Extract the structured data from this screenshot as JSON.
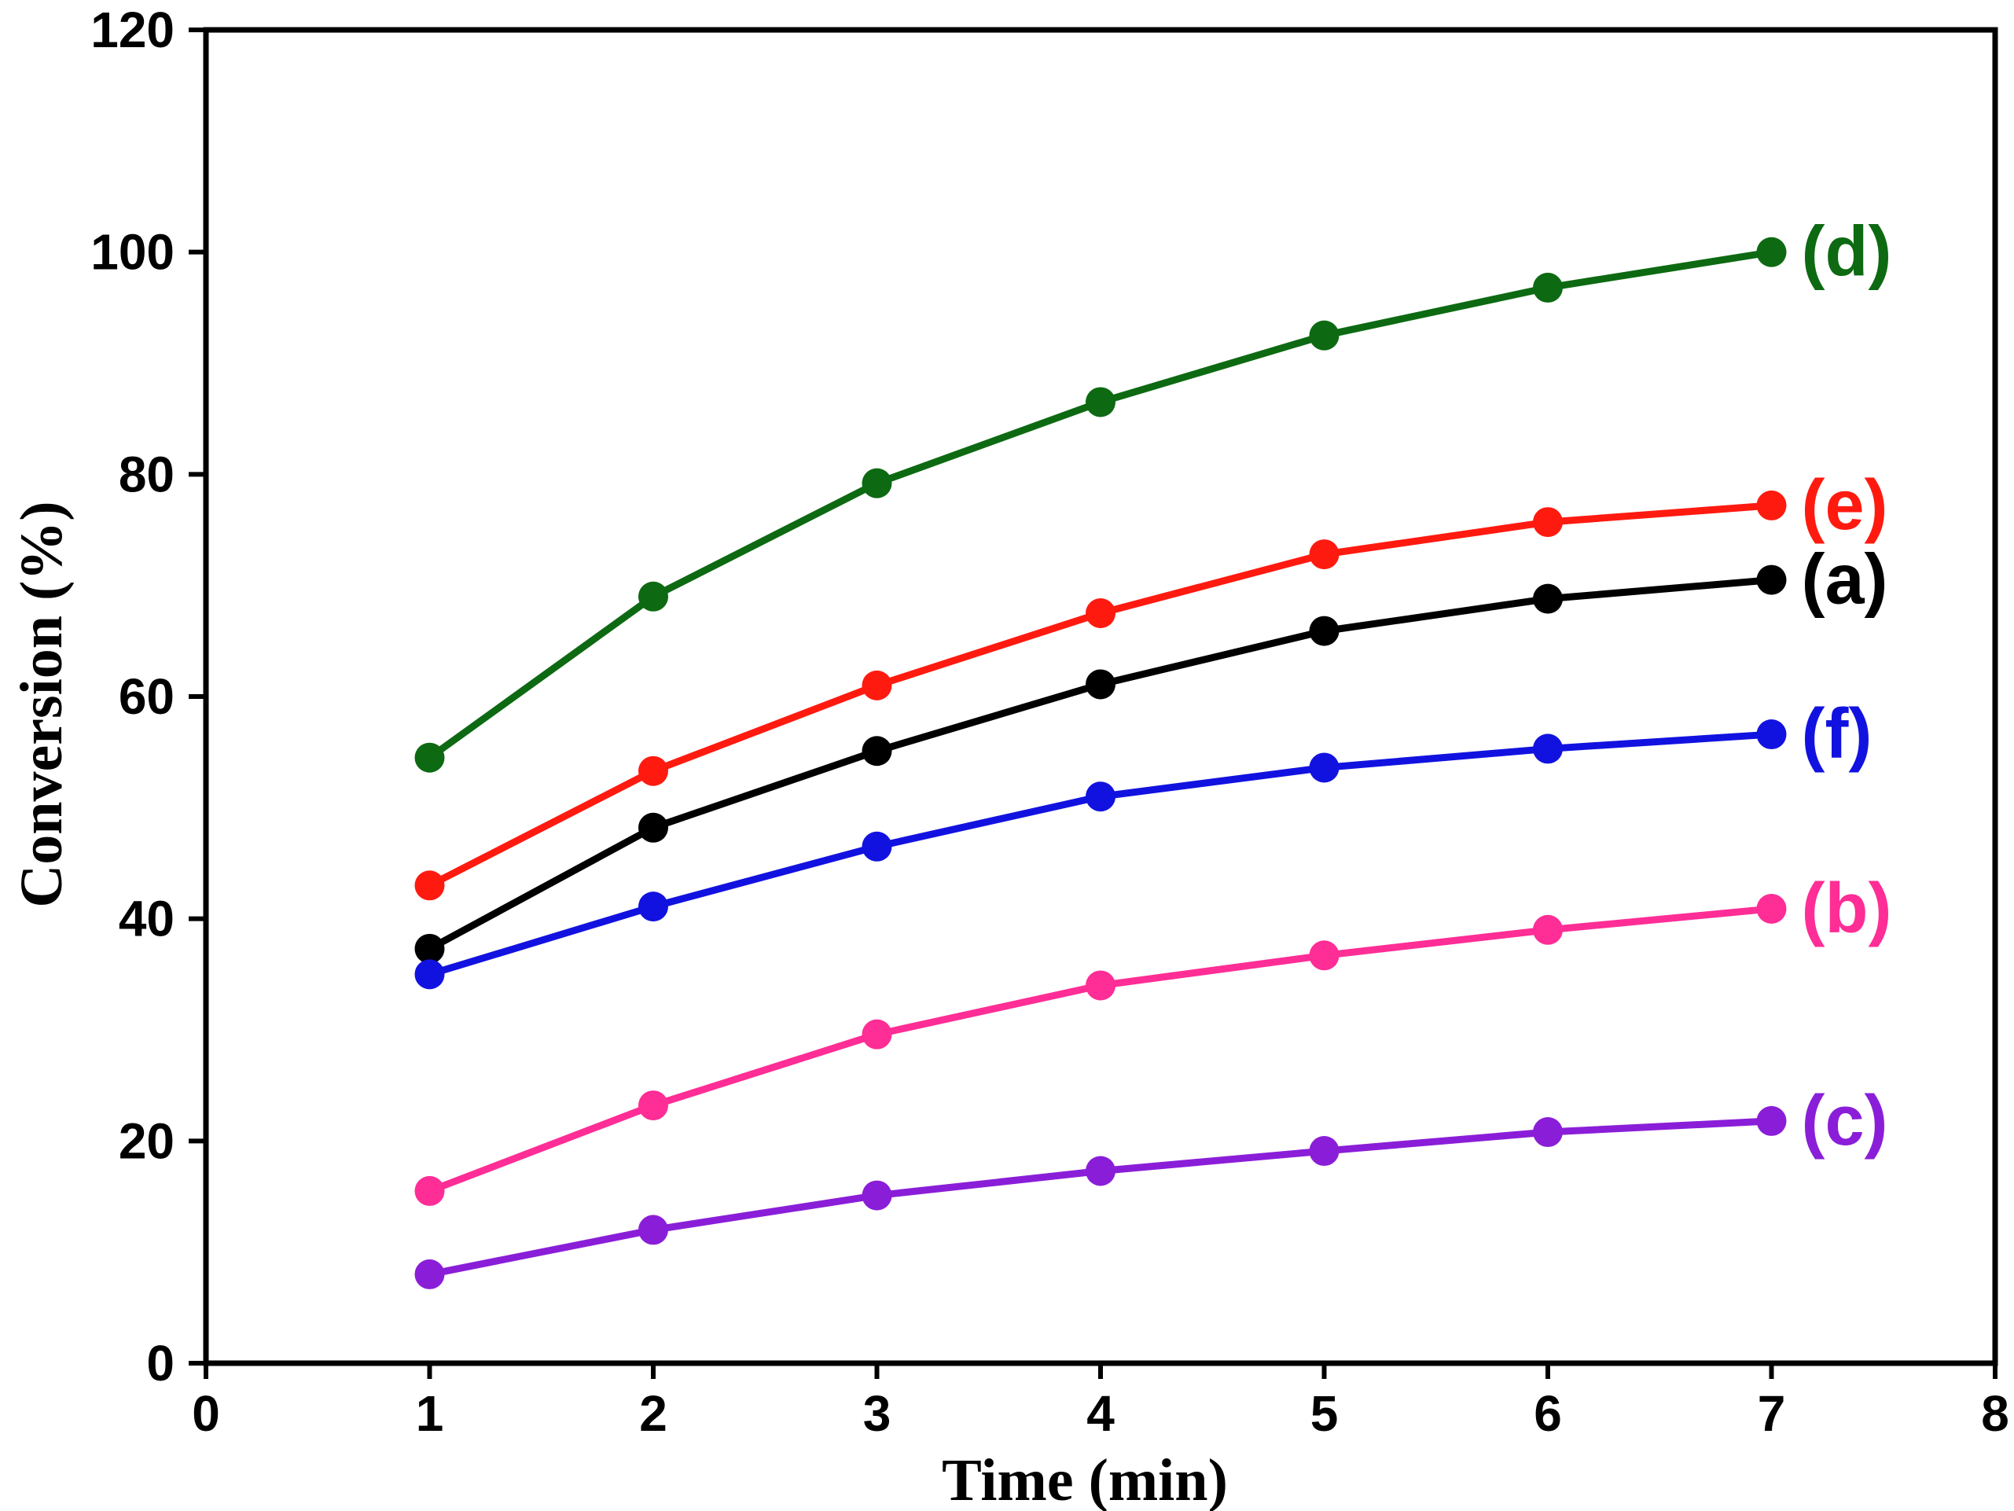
{
  "chart_data": {
    "type": "line",
    "title": "",
    "xlabel": "Time (min)",
    "ylabel": "Conversion (%)",
    "xlim": [
      0,
      8
    ],
    "ylim": [
      0,
      120
    ],
    "xticks": [
      0,
      1,
      2,
      3,
      4,
      5,
      6,
      7,
      8
    ],
    "yticks": [
      0,
      20,
      40,
      60,
      80,
      100,
      120
    ],
    "grid": false,
    "legend": "inline labels at right end of each line",
    "x": [
      1,
      2,
      3,
      4,
      5,
      6,
      7
    ],
    "series": [
      {
        "name": "(d)",
        "color": "#0d6a12",
        "values": [
          54.5,
          69.0,
          79.2,
          86.5,
          92.5,
          96.8,
          100.0
        ]
      },
      {
        "name": "(e)",
        "color": "#ff1a10",
        "values": [
          43.0,
          53.3,
          61.0,
          67.5,
          72.8,
          75.7,
          77.2
        ]
      },
      {
        "name": "(a)",
        "color": "#000000",
        "values": [
          37.3,
          48.2,
          55.1,
          61.1,
          65.9,
          68.8,
          70.5
        ]
      },
      {
        "name": "(f)",
        "color": "#1212e0",
        "values": [
          35.0,
          41.1,
          46.5,
          51.0,
          53.6,
          55.3,
          56.6
        ]
      },
      {
        "name": "(b)",
        "color": "#ff2d96",
        "values": [
          15.5,
          23.2,
          29.6,
          34.0,
          36.7,
          39.0,
          40.9
        ]
      },
      {
        "name": "(c)",
        "color": "#8a1ed8",
        "values": [
          8.0,
          12.0,
          15.1,
          17.3,
          19.1,
          20.8,
          21.8
        ]
      }
    ]
  }
}
